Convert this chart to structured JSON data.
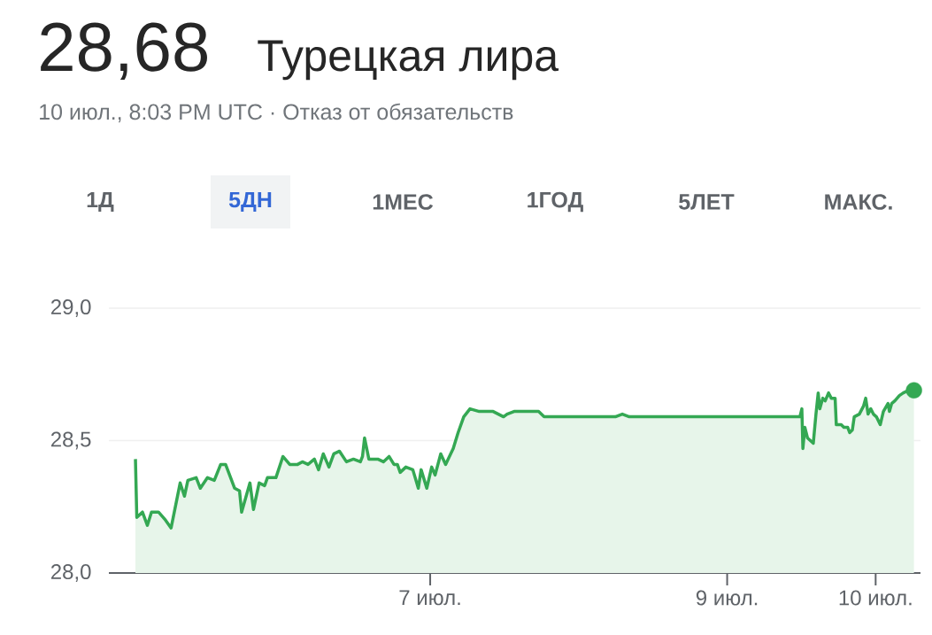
{
  "chart_data": {
    "type": "area",
    "title": "28,68",
    "subtitle": "10 июл., 8:03 PM UTC · Отказ от обязательств",
    "annotations": [
      "Турецкая лира",
      "1Д",
      "5ДН",
      "1МЕС",
      "1ГОД",
      "5ЛЕТ",
      "МАКС."
    ],
    "xlim": [
      4.836,
      10.302
    ],
    "ylim": [
      28,
      29
    ],
    "xticks": [
      {
        "value": 7,
        "label": "7 июл."
      },
      {
        "value": 9,
        "label": "9 июл."
      },
      {
        "value": 10,
        "label": "10 июл."
      }
    ],
    "yticks": [
      {
        "value": 28,
        "label": "28,0"
      },
      {
        "value": 28.5,
        "label": "28,5"
      },
      {
        "value": 29,
        "label": "29,0"
      }
    ],
    "grid": "y",
    "series": [
      {
        "color": "#34a853",
        "x": [
          5.015,
          5.024,
          5.062,
          5.095,
          5.123,
          5.17,
          5.217,
          5.255,
          5.316,
          5.345,
          5.368,
          5.424,
          5.452,
          5.5,
          5.546,
          5.589,
          5.622,
          5.683,
          5.716,
          5.73,
          5.786,
          5.81,
          5.848,
          5.885,
          5.904,
          5.961,
          6.008,
          6.054,
          6.107,
          6.139,
          6.177,
          6.22,
          6.248,
          6.28,
          6.318,
          6.351,
          6.389,
          6.436,
          6.483,
          6.53,
          6.544,
          6.558,
          6.587,
          6.647,
          6.685,
          6.723,
          6.756,
          6.779,
          6.798,
          6.836,
          6.883,
          6.92,
          6.939,
          6.977,
          7.01,
          7.033,
          7.071,
          7.104,
          7.155,
          7.188,
          7.226,
          7.268,
          7.33,
          7.377,
          7.424,
          7.494,
          7.518,
          7.565,
          7.73,
          7.767,
          7.824,
          7.871,
          8.247,
          8.294,
          8.341,
          9.155,
          9.18,
          9.232,
          9.309,
          9.49,
          9.503,
          9.51,
          9.523,
          9.541,
          9.58,
          9.598,
          9.613,
          9.624,
          9.644,
          9.66,
          9.683,
          9.701,
          9.727,
          9.735,
          9.768,
          9.786,
          9.812,
          9.825,
          9.843,
          9.856,
          9.89,
          9.918,
          9.933,
          9.949,
          9.967,
          9.985,
          10.005,
          10.031,
          10.052,
          10.083,
          10.093,
          10.108,
          10.129,
          10.16,
          10.186,
          10.224,
          10.258
        ],
        "values": [
          28.43,
          28.21,
          28.23,
          28.18,
          28.23,
          28.23,
          28.2,
          28.17,
          28.34,
          28.29,
          28.35,
          28.36,
          28.32,
          28.36,
          28.35,
          28.41,
          28.41,
          28.32,
          28.31,
          28.23,
          28.34,
          28.24,
          28.34,
          28.33,
          28.36,
          28.36,
          28.44,
          28.41,
          28.41,
          28.42,
          28.41,
          28.43,
          28.39,
          28.45,
          28.4,
          28.45,
          28.46,
          28.42,
          28.43,
          28.42,
          28.44,
          28.51,
          28.43,
          28.43,
          28.42,
          28.44,
          28.41,
          28.41,
          28.38,
          28.4,
          28.39,
          28.32,
          28.39,
          28.32,
          28.4,
          28.37,
          28.45,
          28.41,
          28.47,
          28.53,
          28.59,
          28.62,
          28.61,
          28.61,
          28.61,
          28.59,
          28.6,
          28.61,
          28.61,
          28.59,
          28.59,
          28.59,
          28.59,
          28.6,
          28.59,
          28.59,
          28.59,
          28.59,
          28.59,
          28.59,
          28.62,
          28.47,
          28.55,
          28.51,
          28.49,
          28.6,
          28.68,
          28.62,
          28.66,
          28.65,
          28.68,
          28.66,
          28.66,
          28.56,
          28.56,
          28.55,
          28.55,
          28.53,
          28.54,
          28.59,
          28.6,
          28.63,
          28.66,
          28.6,
          28.62,
          28.6,
          28.59,
          28.56,
          28.61,
          28.64,
          28.61,
          28.64,
          28.65,
          28.67,
          28.68,
          28.69,
          28.69
        ]
      },
      {
        "type": "scatter",
        "marker": "circle",
        "color": "#34a853",
        "x": [
          10.258
        ],
        "values": [
          28.69
        ]
      }
    ]
  }
}
